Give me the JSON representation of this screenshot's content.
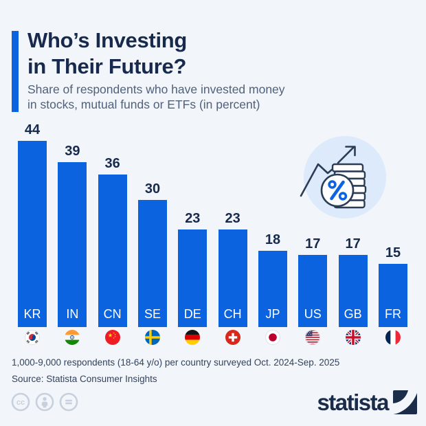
{
  "header": {
    "title_line1": "Who’s Investing",
    "title_line2": "in Their Future?",
    "subtitle_line1": "Share of respondents who have invested money",
    "subtitle_line2": "in stocks, mutual funds or ETFs (in percent)"
  },
  "chart_data": {
    "type": "bar",
    "title": "Who’s Investing in Their Future?",
    "subtitle": "Share of respondents who have invested money in stocks, mutual funds or ETFs (in percent)",
    "categories": [
      "KR",
      "IN",
      "CN",
      "SE",
      "DE",
      "CH",
      "JP",
      "US",
      "GB",
      "FR"
    ],
    "values": [
      44,
      39,
      36,
      30,
      23,
      23,
      18,
      17,
      17,
      15
    ],
    "flags": [
      "south-korea",
      "india",
      "china",
      "sweden",
      "germany",
      "switzerland",
      "japan",
      "united-states",
      "united-kingdom",
      "france"
    ],
    "xlabel": "",
    "ylabel": "",
    "ylim": [
      0,
      48
    ],
    "grid": false,
    "legend": "none",
    "value_labels": "above-bars",
    "category_labels": "inside-bar-bottom",
    "bar_color": "#0b63df"
  },
  "decoration": {
    "icon": "percent-coins-growth-icon"
  },
  "footer": {
    "note": "1,000-9,000 respondents (18-64 y/o) per country surveyed Oct. 2024-Sep. 2025",
    "source": "Source: Statista Consumer Insights"
  },
  "branding": {
    "logo_text": "statista",
    "license_icons": [
      "cc",
      "attribution",
      "no-derivatives"
    ]
  },
  "colors": {
    "background": "#f2f5f9",
    "accent_blue": "#0b63df",
    "title_navy": "#17294d",
    "subtitle_gray": "#4f617c",
    "footer_text": "#31435f",
    "logo_navy": "#1a2c49",
    "license_gray": "#c7d0dd",
    "icon_bg": "#dceafb",
    "icon_stroke": "#2b3c55",
    "icon_percent_blue": "#0c63e3"
  }
}
